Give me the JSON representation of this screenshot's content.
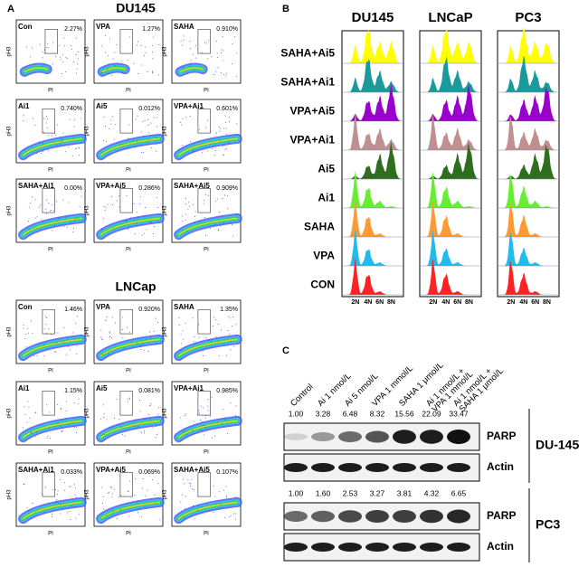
{
  "panel_a": {
    "label": "A",
    "y_axis_label": "pH3",
    "x_axis_label": "PI",
    "groups": [
      {
        "title": "DU145",
        "plots": [
          {
            "name": "Con",
            "value": "2.27%"
          },
          {
            "name": "VPA",
            "value": "1.27%"
          },
          {
            "name": "SAHA",
            "value": "0.910%"
          },
          {
            "name": "Ai1",
            "value": "0.740%"
          },
          {
            "name": "Ai5",
            "value": "0.012%"
          },
          {
            "name": "VPA+Ai1",
            "value": "0.601%"
          },
          {
            "name": "SAHA+Ai1",
            "value": "0.00%"
          },
          {
            "name": "VPA+Ai5",
            "value": "0.286%"
          },
          {
            "name": "SAHA+Ai5",
            "value": "0.909%"
          }
        ]
      },
      {
        "title": "LNCap",
        "plots": [
          {
            "name": "Con",
            "value": "1.46%"
          },
          {
            "name": "VPA",
            "value": "0.920%"
          },
          {
            "name": "SAHA",
            "value": "1.35%"
          },
          {
            "name": "Ai1",
            "value": "1.15%"
          },
          {
            "name": "Ai5",
            "value": "0.081%"
          },
          {
            "name": "VPA+Ai1",
            "value": "0.985%"
          },
          {
            "name": "SAHA+Ai1",
            "value": "0.033%"
          },
          {
            "name": "VPA+Ai5",
            "value": "0.069%"
          },
          {
            "name": "SAHA+Ai5",
            "value": "0.107%"
          }
        ]
      }
    ]
  },
  "panel_b": {
    "label": "B",
    "columns": [
      "DU145",
      "LNCaP",
      "PC3"
    ],
    "rows": [
      "SAHA+Ai5",
      "SAHA+Ai1",
      "VPA+Ai5",
      "VPA+Ai1",
      "Ai5",
      "Ai1",
      "SAHA",
      "VPA",
      "CON"
    ],
    "row_colors": [
      "#ffff00",
      "#1a9a9a",
      "#9900cc",
      "#c09090",
      "#2f6e1e",
      "#66ee33",
      "#ff9933",
      "#22bbee",
      "#ff2222"
    ],
    "x_labels": [
      "2N",
      "4N",
      "6N",
      "8N"
    ]
  },
  "panel_c": {
    "label": "C",
    "lanes": [
      [
        "Control"
      ],
      [
        "Ai 1 nmol/L"
      ],
      [
        "Ai 5 nmol/L"
      ],
      [
        "VPA 1 mmol/L"
      ],
      [
        "SAHA 1 μmol/L"
      ],
      [
        "Ai 1 nmol/L +",
        "VPA 1 mmol/L"
      ],
      [
        "Ai 1 nmol/L +",
        "SAHA 1 μmol/L"
      ]
    ],
    "blots": [
      {
        "cell_line": "DU-145",
        "values": [
          "1.00",
          "3.28",
          "6.48",
          "8.32",
          "15.56",
          "22.09",
          "33.47"
        ],
        "bands": [
          "PARP",
          "Actin"
        ]
      },
      {
        "cell_line": "PC3",
        "values": [
          "1.00",
          "1.60",
          "2.53",
          "3.27",
          "3.81",
          "4.32",
          "6.65"
        ],
        "bands": [
          "PARP",
          "Actin"
        ]
      }
    ]
  }
}
